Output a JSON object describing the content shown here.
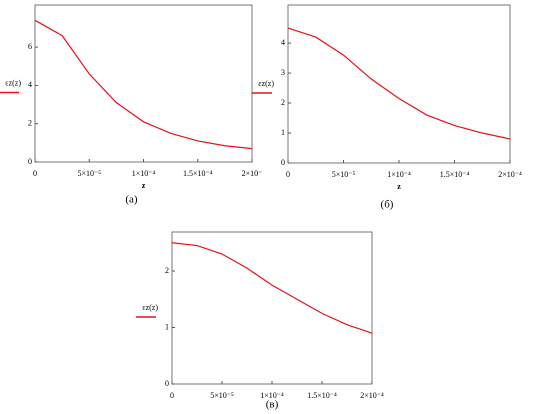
{
  "chart_data": [
    {
      "type": "line",
      "ylabel": "εz(z)",
      "xlabel": "z",
      "caption": "(а)",
      "color": "#e8101a",
      "x": [
        0,
        2.5e-05,
        5e-05,
        7.5e-05,
        0.0001,
        0.000125,
        0.00015,
        0.000175,
        0.0002
      ],
      "values": [
        7.4,
        6.6,
        4.6,
        3.1,
        2.1,
        1.5,
        1.1,
        0.85,
        0.7
      ],
      "xlim": [
        0,
        0.0002
      ],
      "ylim": [
        0,
        8.2
      ],
      "xticks": [
        0,
        {
          "value": 5e-05,
          "label": "5×10⁻⁵"
        },
        {
          "value": 0.0001,
          "label": "1×10⁻⁴"
        },
        {
          "value": 0.00015,
          "label": "1.5×10⁻⁴"
        },
        {
          "value": 0.0002,
          "label": "2×10⁻"
        }
      ],
      "yticks": [
        0,
        2,
        4,
        6
      ]
    },
    {
      "type": "line",
      "ylabel": "εz(z)",
      "xlabel": "z",
      "caption": "(б)",
      "color": "#e8101a",
      "x": [
        0,
        2.5e-05,
        5e-05,
        7.5e-05,
        0.0001,
        0.000125,
        0.00015,
        0.000175,
        0.0002
      ],
      "values": [
        4.5,
        4.2,
        3.6,
        2.8,
        2.15,
        1.6,
        1.25,
        1.0,
        0.8
      ],
      "xlim": [
        0,
        0.0002
      ],
      "ylim": [
        0,
        5.27
      ],
      "xticks": [
        0,
        {
          "value": 5e-05,
          "label": "5×10⁻⁵"
        },
        {
          "value": 0.0001,
          "label": "1×10⁻⁴"
        },
        {
          "value": 0.00015,
          "label": "1.5×10⁻⁴"
        },
        {
          "value": 0.0002,
          "label": "2×10⁻⁴"
        }
      ],
      "yticks": [
        0,
        1,
        2,
        3,
        4
      ]
    },
    {
      "type": "line",
      "ylabel": "εz(z)",
      "caption": "(в)",
      "color": "#e8101a",
      "x": [
        0,
        2.5e-05,
        5e-05,
        7.5e-05,
        0.0001,
        0.000125,
        0.00015,
        0.000175,
        0.0002
      ],
      "values": [
        2.5,
        2.45,
        2.3,
        2.05,
        1.75,
        1.5,
        1.25,
        1.05,
        0.9
      ],
      "xlim": [
        0,
        0.0002
      ],
      "ylim": [
        0,
        2.69
      ],
      "xticks": [
        0,
        {
          "value": 5e-05,
          "label": "5×10⁻⁵"
        },
        {
          "value": 0.0001,
          "label": "1×10⁻⁴"
        },
        {
          "value": 0.00015,
          "label": "1.5×10⁻⁴"
        },
        {
          "value": 0.0002,
          "label": "2×10⁻⁴"
        }
      ],
      "yticks": [
        0,
        1,
        2
      ]
    }
  ]
}
